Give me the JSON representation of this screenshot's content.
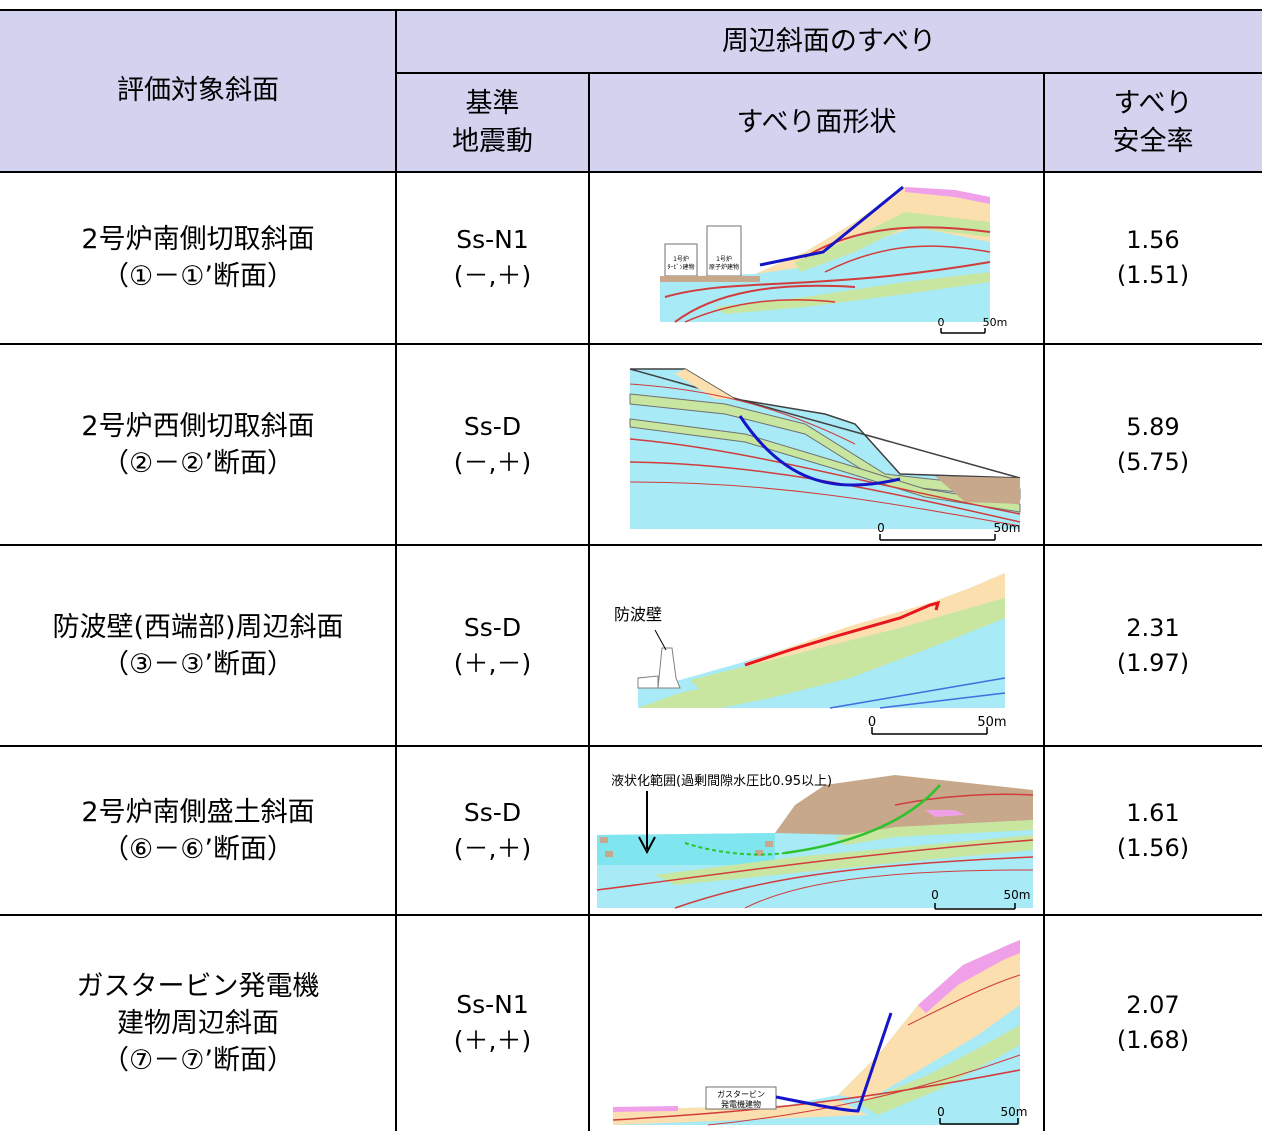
{
  "header": {
    "target_slope": "評価対象斜面",
    "group_title": "周辺斜面のすべり",
    "motion_line1": "基準",
    "motion_line2": "地震動",
    "shape": "すべり面形状",
    "factor_line1": "すべり",
    "factor_line2": "安全率"
  },
  "rows": [
    {
      "name_lines": [
        "2号炉南側切取斜面",
        "（①－①’断面）"
      ],
      "motion": "Ss-N1",
      "sign": "(－,＋)",
      "factor": "1.56",
      "factor_sub": "(1.51)",
      "diagram": {
        "labels": [
          "1号炉",
          "ﾀｰﾋﾞﾝ建物",
          "1号炉",
          "原子炉建物"
        ],
        "scale_start": "0",
        "scale_end": "50m",
        "slip_color": "#1414c8"
      }
    },
    {
      "name_lines": [
        "2号炉西側切取斜面",
        "（②－②’断面）"
      ],
      "motion": "Ss-D",
      "sign": "(－,＋)",
      "factor": "5.89",
      "factor_sub": "(5.75)",
      "diagram": {
        "scale_start": "0",
        "scale_end": "50m",
        "slip_color": "#1414c8"
      }
    },
    {
      "name_lines": [
        "防波壁(西端部)周辺斜面",
        "（③－③’断面）"
      ],
      "motion": "Ss-D",
      "sign": "(＋,－)",
      "factor": "2.31",
      "factor_sub": "(1.97)",
      "diagram": {
        "label": "防波壁",
        "scale_start": "0",
        "scale_end": "50m",
        "slip_color": "#e8141e"
      }
    },
    {
      "name_lines": [
        "2号炉南側盛土斜面",
        "（⑥－⑥’断面）"
      ],
      "motion": "Ss-D",
      "sign": "(－,＋)",
      "factor": "1.61",
      "factor_sub": "(1.56)",
      "diagram": {
        "label": "液状化範囲(過剰間隙水圧比0.95以上)",
        "scale_start": "0",
        "scale_end": "50m",
        "slip_color": "#2fc22f"
      }
    },
    {
      "name_lines": [
        "ガスタービン発電機",
        "建物周辺斜面",
        "（⑦－⑦’断面）"
      ],
      "motion": "Ss-N1",
      "sign": "(＋,＋)",
      "factor": "2.07",
      "factor_sub": "(1.68)",
      "diagram": {
        "labels": [
          "ガスタービン",
          "発電機建物"
        ],
        "scale_start": "0",
        "scale_end": "50m",
        "slip_color": "#1414c8"
      }
    }
  ],
  "colors": {
    "header_bg": "#d3d3f0",
    "sea": "#a8eaf5",
    "soil_beige": "#fbdfae",
    "soil_green": "#c8e6a0",
    "fill_brown": "#c8a88a",
    "pink": "#f0a0e8",
    "fault_red": "#d23c3c"
  }
}
